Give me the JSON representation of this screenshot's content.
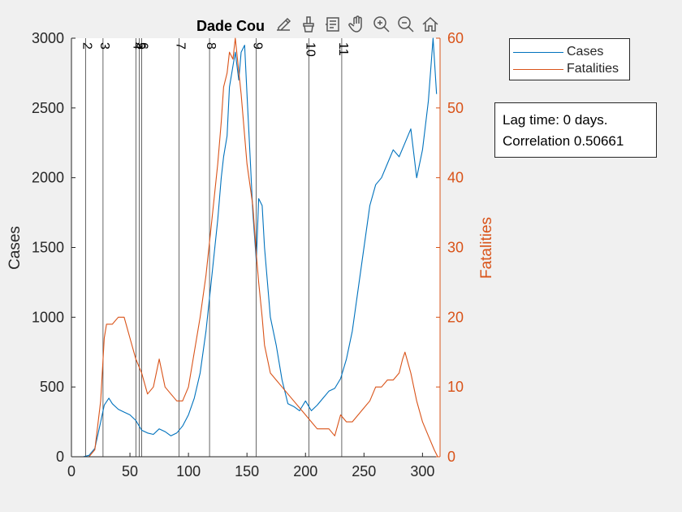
{
  "chart_data": {
    "type": "line",
    "title": "Dade Cou",
    "ylabel_left": "Cases",
    "ylabel_right": "Fatalities",
    "xlim": [
      0,
      315
    ],
    "ylim_left": [
      0,
      3000
    ],
    "ylim_right": [
      0,
      60
    ],
    "x_ticks": [
      0,
      50,
      100,
      150,
      200,
      250,
      300
    ],
    "y_left_ticks": [
      0,
      500,
      1000,
      1500,
      2000,
      2500,
      3000
    ],
    "y_right_ticks": [
      0,
      10,
      20,
      30,
      40,
      50,
      60
    ],
    "grid": false,
    "legend_position": "top-right-outside",
    "phase_lines": [
      {
        "label": "2",
        "x": 12
      },
      {
        "label": "3",
        "x": 27
      },
      {
        "label": "4",
        "x": 55
      },
      {
        "label": "5",
        "x": 58
      },
      {
        "label": "6",
        "x": 60
      },
      {
        "label": "7",
        "x": 92
      },
      {
        "label": "8",
        "x": 118
      },
      {
        "label": "9",
        "x": 158
      },
      {
        "label": "10",
        "x": 203
      },
      {
        "label": "11",
        "x": 231
      }
    ],
    "series": [
      {
        "name": "Cases",
        "axis": "left",
        "color": "#0072BD",
        "x": [
          10,
          15,
          20,
          25,
          28,
          32,
          35,
          40,
          45,
          50,
          55,
          60,
          65,
          70,
          75,
          80,
          85,
          90,
          95,
          100,
          105,
          110,
          115,
          120,
          125,
          128,
          130,
          133,
          135,
          138,
          140,
          143,
          145,
          148,
          150,
          153,
          155,
          158,
          160,
          163,
          165,
          170,
          175,
          180,
          185,
          190,
          195,
          200,
          205,
          210,
          215,
          220,
          225,
          230,
          235,
          240,
          245,
          250,
          255,
          260,
          265,
          270,
          275,
          280,
          285,
          290,
          295,
          300,
          305,
          309,
          312
        ],
        "y": [
          0,
          10,
          60,
          250,
          370,
          420,
          380,
          340,
          320,
          300,
          260,
          190,
          170,
          160,
          200,
          180,
          150,
          170,
          220,
          300,
          420,
          600,
          900,
          1300,
          1700,
          2000,
          2150,
          2300,
          2650,
          2800,
          2900,
          2700,
          2900,
          2950,
          2600,
          2100,
          1750,
          1400,
          1850,
          1800,
          1500,
          1000,
          800,
          550,
          380,
          360,
          330,
          400,
          330,
          370,
          420,
          470,
          490,
          560,
          700,
          900,
          1200,
          1500,
          1800,
          1950,
          2000,
          2100,
          2200,
          2150,
          2250,
          2350,
          2000,
          2200,
          2550,
          3000,
          2600
        ]
      },
      {
        "name": "Fatalities",
        "axis": "right",
        "color": "#D95319",
        "x": [
          10,
          15,
          20,
          25,
          28,
          30,
          35,
          40,
          45,
          50,
          55,
          60,
          65,
          70,
          75,
          80,
          85,
          90,
          95,
          100,
          105,
          110,
          115,
          120,
          125,
          128,
          130,
          133,
          135,
          138,
          140,
          145,
          150,
          155,
          158,
          160,
          163,
          165,
          170,
          175,
          180,
          185,
          190,
          195,
          200,
          205,
          210,
          215,
          220,
          225,
          230,
          235,
          240,
          245,
          250,
          255,
          260,
          265,
          270,
          275,
          280,
          283,
          285,
          290,
          295,
          300,
          305,
          310,
          313
        ],
        "y": [
          0,
          0,
          1,
          8,
          17,
          19,
          19,
          20,
          20,
          17,
          14,
          12,
          9,
          10,
          14,
          10,
          9,
          8,
          8,
          10,
          15,
          20,
          26,
          34,
          42,
          48,
          53,
          55,
          58,
          57,
          60,
          52,
          42,
          36,
          29,
          25,
          20,
          16,
          12,
          11,
          10,
          9,
          8,
          7,
          6,
          5,
          4,
          4,
          4,
          3,
          6,
          5,
          5,
          6,
          7,
          8,
          10,
          10,
          11,
          11,
          12,
          14,
          15,
          12,
          8,
          5,
          3,
          1,
          0
        ]
      }
    ]
  },
  "legend": {
    "items": [
      {
        "label": "Cases",
        "color": "#0072BD"
      },
      {
        "label": "Fatalities",
        "color": "#D95319"
      }
    ]
  },
  "annotation": {
    "line1": "Lag time: 0 days.",
    "line2": "Correlation 0.50661"
  },
  "toolbar": {
    "icons": [
      "export-icon",
      "brush-icon",
      "datatip-icon",
      "pan-icon",
      "zoom-in-icon",
      "zoom-out-icon",
      "home-icon"
    ]
  }
}
